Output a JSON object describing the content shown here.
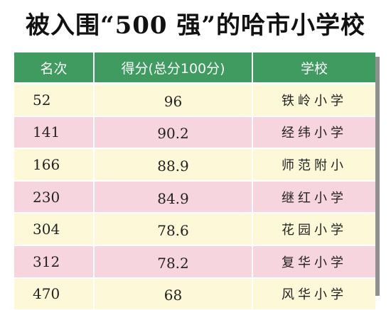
{
  "title": "被入围“500 强”的哈市小学校",
  "colors": {
    "header_bg": "#3f9b5f",
    "row_odd_bg": "#fcf8d8",
    "row_even_bg": "#f7d5df"
  },
  "table": {
    "headers": [
      "名次",
      "得分(总分100分)",
      "学校"
    ],
    "rows": [
      {
        "rank": "52",
        "score": "96",
        "school": "铁岭小学"
      },
      {
        "rank": "141",
        "score": "90.2",
        "school": "经纬小学"
      },
      {
        "rank": "166",
        "score": "88.9",
        "school": "师范附小"
      },
      {
        "rank": "230",
        "score": "84.9",
        "school": "继红小学"
      },
      {
        "rank": "304",
        "score": "78.6",
        "school": "花园小学"
      },
      {
        "rank": "312",
        "score": "78.2",
        "school": "复华小学"
      },
      {
        "rank": "470",
        "score": "68",
        "school": "风华小学"
      }
    ]
  }
}
